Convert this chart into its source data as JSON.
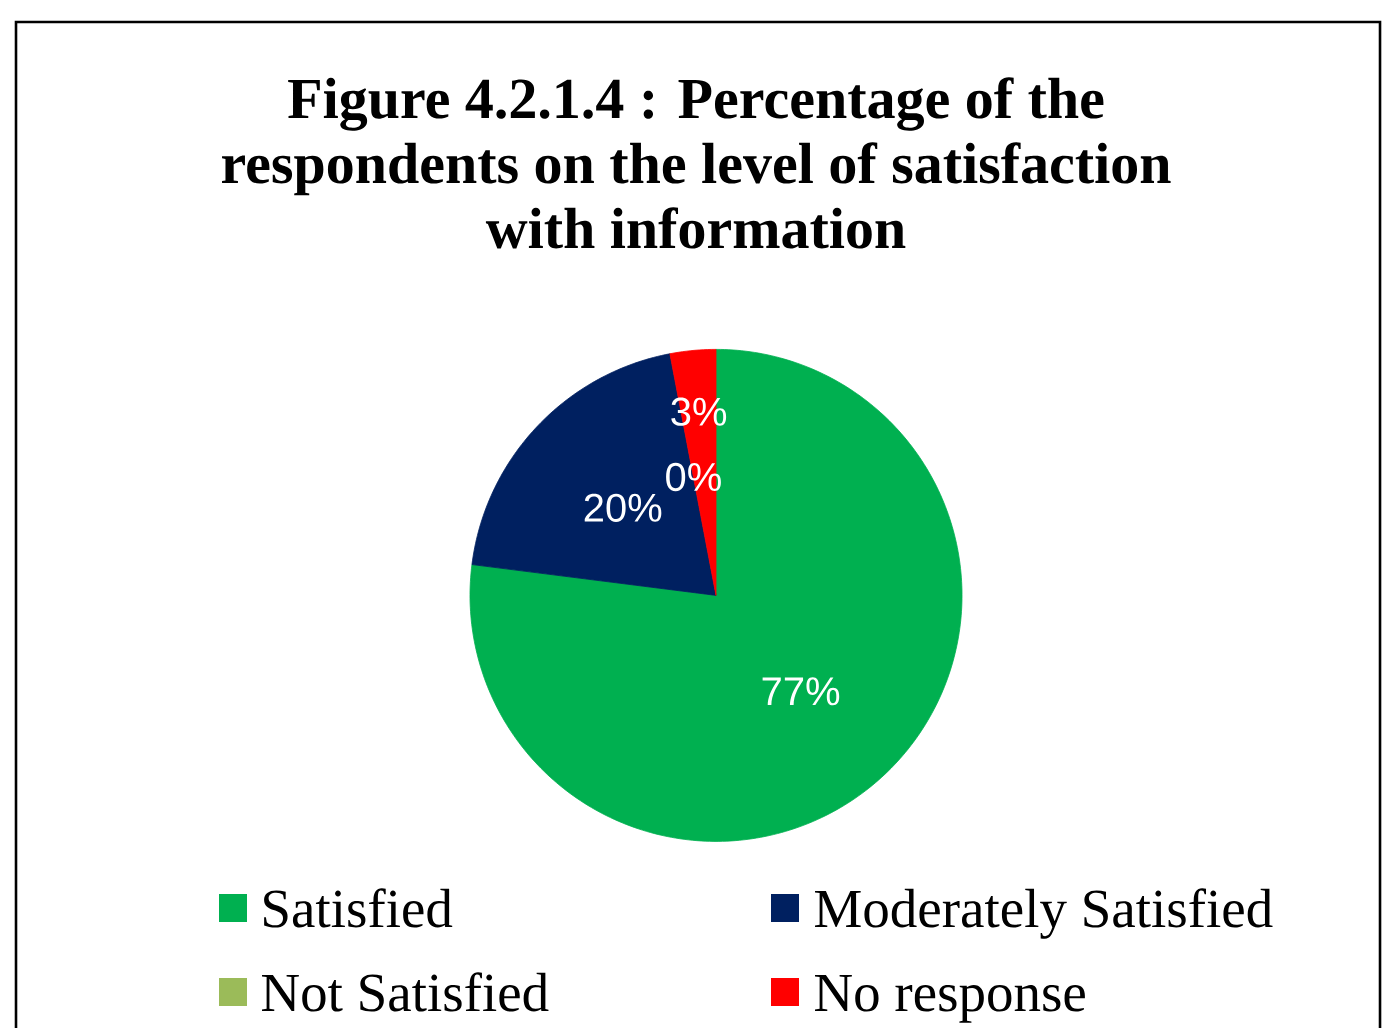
{
  "chart_data": {
    "type": "pie",
    "title": "Figure 4.2.1.4 : Percentage of the respondents on the level of satisfaction with information",
    "categories": [
      "Satisfied",
      "Moderately Satisfied",
      "Not Satisfied",
      "No response"
    ],
    "values": [
      77,
      20,
      0,
      3
    ],
    "colors": [
      "#00b050",
      "#002060",
      "#9bbb59",
      "#ff0000"
    ],
    "value_labels": [
      "77%",
      "20%",
      "0%",
      "3%"
    ],
    "legend": "bottom"
  }
}
